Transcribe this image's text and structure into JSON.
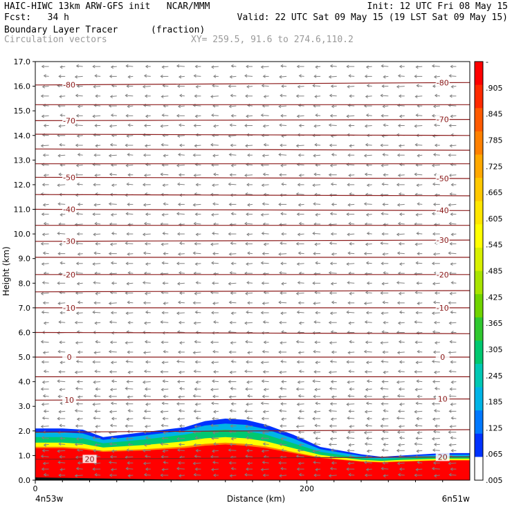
{
  "header": {
    "line1_left": "HAIC-HIWC 13km ARW-GFS init   NCAR/MMM",
    "line1_right": "Init: 12 UTC Fri 08 May 15",
    "line2_left": "Fcst:   34 h",
    "line2_right": "Valid: 22 UTC Sat 09 May 15 (19 LST Sat 09 May 15)",
    "line3_field": "Boundary Layer Tracer",
    "line3_units": "(fraction)",
    "line4_field": "Circulation vectors",
    "line4_xy": "XY= 259.5, 91.6 to 274.6,110.2"
  },
  "chart_data": {
    "type": "cross-section",
    "ylabel": "Height (km)",
    "xlabel": "Distance (km)",
    "x_left_label": "4n53w",
    "x_right_label": "6n51w",
    "xlim": [
      0,
      320
    ],
    "ylim": [
      0,
      17
    ],
    "x_ticks": [
      "0",
      "200"
    ],
    "y_ticks": [
      "0.0",
      "1.0",
      "2.0",
      "3.0",
      "4.0",
      "5.0",
      "6.0",
      "7.0",
      "8.0",
      "9.0",
      "10.0",
      "11.0",
      "12.0",
      "13.0",
      "14.0",
      "15.0",
      "16.0",
      "17.0"
    ],
    "colorbar": {
      "labels": [
        "-",
        ".905",
        ".845",
        ".785",
        ".725",
        ".665",
        ".605",
        ".545",
        ".485",
        ".425",
        ".365",
        ".305",
        ".245",
        ".185",
        ".125",
        ".065",
        ".005"
      ],
      "colors": [
        "#ff0000",
        "#ff2a00",
        "#ff5a00",
        "#ff8000",
        "#ffa800",
        "#ffc800",
        "#ffe600",
        "#ffff00",
        "#d8f000",
        "#a8e400",
        "#70d400",
        "#30c830",
        "#00c870",
        "#00c8b4",
        "#00b4e6",
        "#0078ff",
        "#0032ff",
        "#ffffff"
      ]
    },
    "tracer_top_km": {
      "x": [
        0,
        20,
        35,
        50,
        80,
        110,
        125,
        140,
        155,
        170,
        190,
        210,
        240,
        255,
        270,
        300,
        320
      ],
      "outer": [
        2.1,
        2.1,
        2.05,
        1.75,
        1.95,
        2.15,
        2.4,
        2.5,
        2.45,
        2.25,
        1.85,
        1.35,
        1.05,
        0.95,
        1.0,
        1.1,
        1.1
      ],
      "mid": [
        1.75,
        1.75,
        1.7,
        1.5,
        1.65,
        1.85,
        2.0,
        2.05,
        2.0,
        1.85,
        1.5,
        1.15,
        0.9,
        0.85,
        0.9,
        0.95,
        0.95
      ],
      "red": [
        1.3,
        1.3,
        1.25,
        1.15,
        1.2,
        1.3,
        1.4,
        1.45,
        1.4,
        1.3,
        1.1,
        0.9,
        0.75,
        0.72,
        0.75,
        0.8,
        0.8
      ]
    },
    "isotherms": [
      {
        "label": "-80",
        "y_left": 16.05,
        "y_right": 16.15,
        "label_pos": [
          "left",
          "right"
        ]
      },
      {
        "label": "",
        "y_left": 15.25,
        "y_right": 15.25,
        "label_pos": []
      },
      {
        "label": "-70",
        "y_left": 14.6,
        "y_right": 14.65,
        "label_pos": [
          "left",
          "right"
        ]
      },
      {
        "label": "",
        "y_left": 14.05,
        "y_right": 14.0,
        "label_pos": []
      },
      {
        "label": "",
        "y_left": 13.45,
        "y_right": 13.4,
        "label_pos": []
      },
      {
        "label": "",
        "y_left": 12.85,
        "y_right": 12.85,
        "label_pos": []
      },
      {
        "label": "-50",
        "y_left": 12.3,
        "y_right": 12.25,
        "label_pos": [
          "left",
          "right"
        ]
      },
      {
        "label": "",
        "y_left": 11.6,
        "y_right": 11.55,
        "label_pos": []
      },
      {
        "label": "-40",
        "y_left": 11.0,
        "y_right": 10.95,
        "label_pos": [
          "left",
          "right"
        ]
      },
      {
        "label": "",
        "y_left": 10.35,
        "y_right": 10.35,
        "label_pos": []
      },
      {
        "label": "-30",
        "y_left": 9.7,
        "y_right": 9.75,
        "label_pos": [
          "left",
          "right"
        ]
      },
      {
        "label": "",
        "y_left": 9.05,
        "y_right": 9.05,
        "label_pos": []
      },
      {
        "label": "-20",
        "y_left": 8.35,
        "y_right": 8.35,
        "label_pos": [
          "left",
          "right"
        ]
      },
      {
        "label": "",
        "y_left": 7.65,
        "y_right": 7.7,
        "label_pos": []
      },
      {
        "label": "-10",
        "y_left": 7.0,
        "y_right": 7.0,
        "label_pos": [
          "left",
          "right"
        ]
      },
      {
        "label": "",
        "y_left": 6.0,
        "y_right": 5.95,
        "label_pos": []
      },
      {
        "label": "0",
        "y_left": 5.0,
        "y_right": 5.0,
        "label_pos": [
          "left",
          "right"
        ]
      },
      {
        "label": "",
        "y_left": 4.2,
        "y_right": 4.2,
        "label_pos": []
      },
      {
        "label": "10",
        "y_left": 3.25,
        "y_right": 3.3,
        "label_pos": [
          "left",
          "right"
        ]
      },
      {
        "label": "",
        "y_left": 1.95,
        "y_right": 2.05,
        "label_pos": []
      },
      {
        "label": "20",
        "y_left": 0.85,
        "y_right": 0.95,
        "label_pos": [
          "center",
          "right"
        ]
      }
    ],
    "vector_columns_x": [
      10,
      22,
      35,
      48,
      60,
      72,
      85,
      98,
      110,
      122,
      135,
      148,
      160,
      172,
      185,
      198,
      210,
      222,
      235,
      248,
      260,
      272,
      285,
      298,
      310
    ],
    "vector_rows_km": [
      0.2,
      0.45,
      0.7,
      0.95,
      1.2,
      1.45,
      1.7,
      1.95,
      2.2,
      2.5,
      2.8,
      3.1,
      3.4,
      3.7,
      4.0,
      4.4,
      4.8,
      5.2,
      5.6,
      6.0,
      6.4,
      6.8,
      7.2,
      7.6,
      8.0,
      8.4,
      8.8,
      9.2,
      9.6,
      10.0,
      10.4,
      10.8,
      11.2,
      11.6,
      12.0,
      12.4,
      12.8,
      13.2,
      13.6,
      14.0,
      14.4,
      14.8,
      15.2,
      15.6,
      16.0,
      16.4,
      16.8
    ],
    "vector_color": "#808080",
    "isotherm_color": "#8b1a1a"
  }
}
